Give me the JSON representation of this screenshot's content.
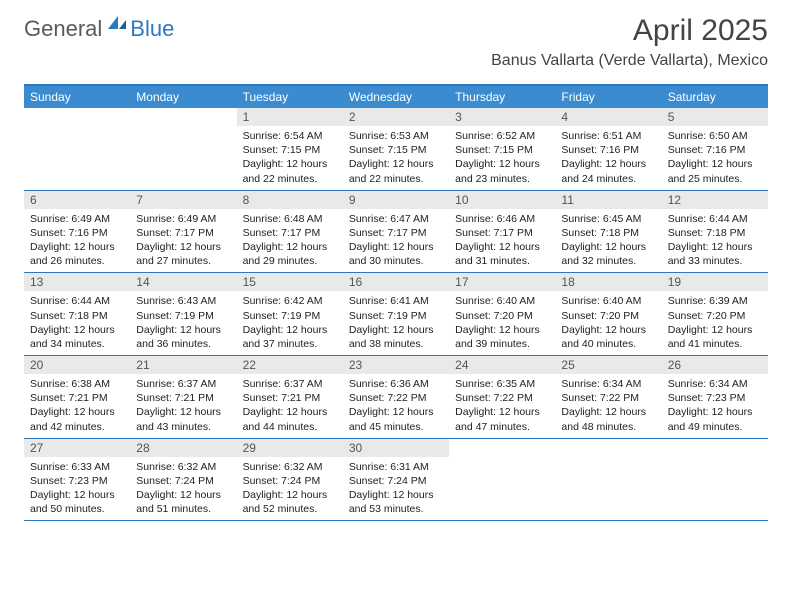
{
  "colors": {
    "brand_blue": "#2b79c2",
    "header_blue": "#3a8bd0",
    "daynum_bg": "#e9e9e9",
    "text": "#222222",
    "logo_gray": "#5a5a5a",
    "background": "#ffffff"
  },
  "logo": {
    "part1": "General",
    "part2": "Blue"
  },
  "title": "April 2025",
  "location": "Banus Vallarta (Verde Vallarta), Mexico",
  "typography": {
    "title_fontsize": 30,
    "location_fontsize": 16,
    "dayhead_fontsize": 12,
    "daynum_fontsize": 12,
    "body_fontsize": 10.5
  },
  "day_headers": [
    "Sunday",
    "Monday",
    "Tuesday",
    "Wednesday",
    "Thursday",
    "Friday",
    "Saturday"
  ],
  "weeks": [
    [
      null,
      null,
      {
        "n": "1",
        "sunrise": "6:54 AM",
        "sunset": "7:15 PM",
        "daylight": "12 hours and 22 minutes."
      },
      {
        "n": "2",
        "sunrise": "6:53 AM",
        "sunset": "7:15 PM",
        "daylight": "12 hours and 22 minutes."
      },
      {
        "n": "3",
        "sunrise": "6:52 AM",
        "sunset": "7:15 PM",
        "daylight": "12 hours and 23 minutes."
      },
      {
        "n": "4",
        "sunrise": "6:51 AM",
        "sunset": "7:16 PM",
        "daylight": "12 hours and 24 minutes."
      },
      {
        "n": "5",
        "sunrise": "6:50 AM",
        "sunset": "7:16 PM",
        "daylight": "12 hours and 25 minutes."
      }
    ],
    [
      {
        "n": "6",
        "sunrise": "6:49 AM",
        "sunset": "7:16 PM",
        "daylight": "12 hours and 26 minutes."
      },
      {
        "n": "7",
        "sunrise": "6:49 AM",
        "sunset": "7:17 PM",
        "daylight": "12 hours and 27 minutes."
      },
      {
        "n": "8",
        "sunrise": "6:48 AM",
        "sunset": "7:17 PM",
        "daylight": "12 hours and 29 minutes."
      },
      {
        "n": "9",
        "sunrise": "6:47 AM",
        "sunset": "7:17 PM",
        "daylight": "12 hours and 30 minutes."
      },
      {
        "n": "10",
        "sunrise": "6:46 AM",
        "sunset": "7:17 PM",
        "daylight": "12 hours and 31 minutes."
      },
      {
        "n": "11",
        "sunrise": "6:45 AM",
        "sunset": "7:18 PM",
        "daylight": "12 hours and 32 minutes."
      },
      {
        "n": "12",
        "sunrise": "6:44 AM",
        "sunset": "7:18 PM",
        "daylight": "12 hours and 33 minutes."
      }
    ],
    [
      {
        "n": "13",
        "sunrise": "6:44 AM",
        "sunset": "7:18 PM",
        "daylight": "12 hours and 34 minutes."
      },
      {
        "n": "14",
        "sunrise": "6:43 AM",
        "sunset": "7:19 PM",
        "daylight": "12 hours and 36 minutes."
      },
      {
        "n": "15",
        "sunrise": "6:42 AM",
        "sunset": "7:19 PM",
        "daylight": "12 hours and 37 minutes."
      },
      {
        "n": "16",
        "sunrise": "6:41 AM",
        "sunset": "7:19 PM",
        "daylight": "12 hours and 38 minutes."
      },
      {
        "n": "17",
        "sunrise": "6:40 AM",
        "sunset": "7:20 PM",
        "daylight": "12 hours and 39 minutes."
      },
      {
        "n": "18",
        "sunrise": "6:40 AM",
        "sunset": "7:20 PM",
        "daylight": "12 hours and 40 minutes."
      },
      {
        "n": "19",
        "sunrise": "6:39 AM",
        "sunset": "7:20 PM",
        "daylight": "12 hours and 41 minutes."
      }
    ],
    [
      {
        "n": "20",
        "sunrise": "6:38 AM",
        "sunset": "7:21 PM",
        "daylight": "12 hours and 42 minutes."
      },
      {
        "n": "21",
        "sunrise": "6:37 AM",
        "sunset": "7:21 PM",
        "daylight": "12 hours and 43 minutes."
      },
      {
        "n": "22",
        "sunrise": "6:37 AM",
        "sunset": "7:21 PM",
        "daylight": "12 hours and 44 minutes."
      },
      {
        "n": "23",
        "sunrise": "6:36 AM",
        "sunset": "7:22 PM",
        "daylight": "12 hours and 45 minutes."
      },
      {
        "n": "24",
        "sunrise": "6:35 AM",
        "sunset": "7:22 PM",
        "daylight": "12 hours and 47 minutes."
      },
      {
        "n": "25",
        "sunrise": "6:34 AM",
        "sunset": "7:22 PM",
        "daylight": "12 hours and 48 minutes."
      },
      {
        "n": "26",
        "sunrise": "6:34 AM",
        "sunset": "7:23 PM",
        "daylight": "12 hours and 49 minutes."
      }
    ],
    [
      {
        "n": "27",
        "sunrise": "6:33 AM",
        "sunset": "7:23 PM",
        "daylight": "12 hours and 50 minutes."
      },
      {
        "n": "28",
        "sunrise": "6:32 AM",
        "sunset": "7:24 PM",
        "daylight": "12 hours and 51 minutes."
      },
      {
        "n": "29",
        "sunrise": "6:32 AM",
        "sunset": "7:24 PM",
        "daylight": "12 hours and 52 minutes."
      },
      {
        "n": "30",
        "sunrise": "6:31 AM",
        "sunset": "7:24 PM",
        "daylight": "12 hours and 53 minutes."
      },
      null,
      null,
      null
    ]
  ],
  "labels": {
    "sunrise": "Sunrise:",
    "sunset": "Sunset:",
    "daylight": "Daylight:"
  }
}
